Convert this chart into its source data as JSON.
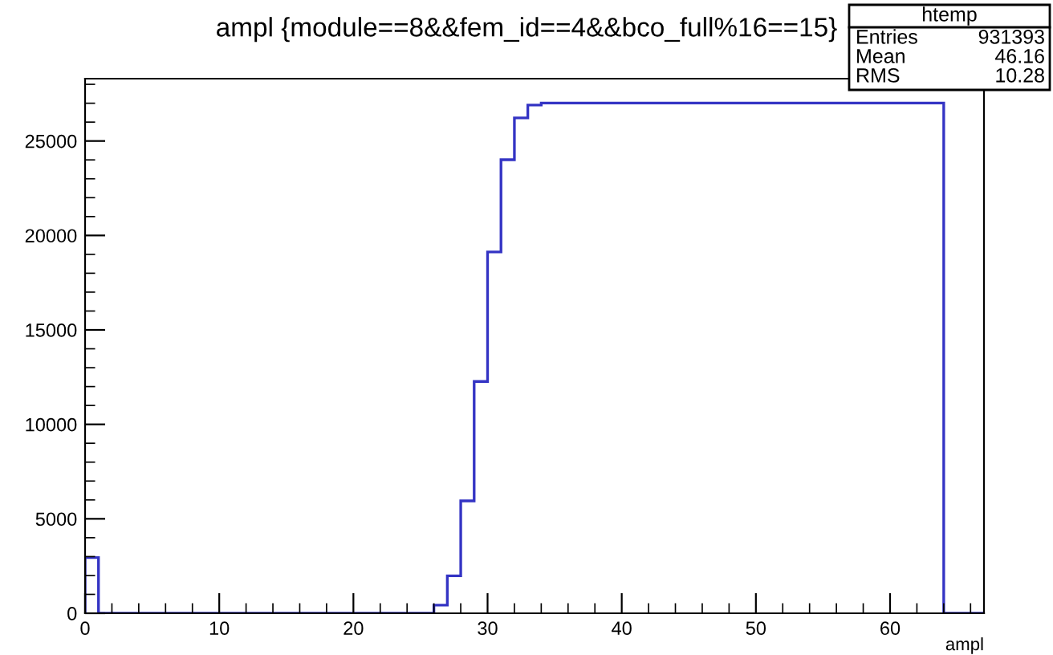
{
  "chart_data": {
    "type": "histogram",
    "title": "ampl {module==8&&fem_id==4&&bco_full%16==15}",
    "xlabel": "ampl",
    "bins": [
      0,
      1,
      2,
      3,
      4,
      5,
      6,
      7,
      8,
      9,
      10,
      11,
      12,
      13,
      14,
      15,
      16,
      17,
      18,
      19,
      20,
      21,
      22,
      23,
      24,
      25,
      26,
      27,
      28,
      29,
      30,
      31,
      32,
      33,
      34,
      35,
      36,
      37,
      38,
      39,
      40,
      41,
      42,
      43,
      44,
      45,
      46,
      47,
      48,
      49,
      50,
      51,
      52,
      53,
      54,
      55,
      56,
      57,
      58,
      59,
      60,
      61,
      62,
      63,
      64,
      65,
      66,
      67
    ],
    "values": [
      2950,
      0,
      0,
      0,
      0,
      0,
      0,
      0,
      0,
      0,
      0,
      0,
      0,
      0,
      0,
      0,
      0,
      0,
      0,
      0,
      0,
      0,
      0,
      0,
      0,
      0,
      430,
      1980,
      5950,
      12270,
      19130,
      24010,
      26220,
      26900,
      27010,
      27010,
      27010,
      27010,
      27010,
      27010,
      27010,
      27010,
      27010,
      27010,
      27010,
      27010,
      27010,
      27010,
      27010,
      27010,
      27010,
      27010,
      27010,
      27010,
      27010,
      27010,
      27010,
      27010,
      27010,
      27010,
      27010,
      27010,
      27010,
      27010,
      0,
      0,
      0
    ],
    "color": "#3434c4",
    "xlim": [
      0,
      67
    ],
    "ylim": [
      0,
      28300
    ],
    "xticks": [
      0,
      10,
      20,
      30,
      40,
      50,
      60
    ],
    "yticks": [
      0,
      5000,
      10000,
      15000,
      20000,
      25000
    ],
    "grid": false,
    "annotations": [
      "htemp",
      "Entries",
      "931393",
      "Mean",
      "46.16",
      "RMS",
      "10.28"
    ]
  }
}
